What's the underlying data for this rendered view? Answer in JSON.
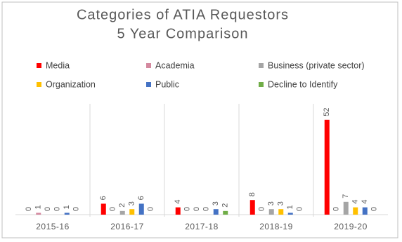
{
  "chart_data": {
    "type": "bar",
    "title": "Categories of ATIA Requestors",
    "subtitle": "5 Year Comparison",
    "categories": [
      "2015-16",
      "2016-17",
      "2017-18",
      "2018-19",
      "2019-20"
    ],
    "series": [
      {
        "name": "Media",
        "color": "#ff0000",
        "values": [
          0,
          6,
          4,
          8,
          52
        ]
      },
      {
        "name": "Academia",
        "color": "#d4899f",
        "values": [
          1,
          0,
          0,
          0,
          0
        ]
      },
      {
        "name": "Business (private sector)",
        "color": "#a5a5a5",
        "values": [
          0,
          2,
          0,
          3,
          7
        ]
      },
      {
        "name": "Organization",
        "color": "#ffc000",
        "values": [
          0,
          3,
          0,
          3,
          4
        ]
      },
      {
        "name": "Public",
        "color": "#4472c4",
        "values": [
          1,
          6,
          3,
          1,
          4
        ]
      },
      {
        "name": "Decline to Identify",
        "color": "#70ad47",
        "values": [
          0,
          0,
          2,
          0,
          0
        ]
      }
    ],
    "ylim": [
      0,
      60
    ],
    "legend": "top"
  }
}
